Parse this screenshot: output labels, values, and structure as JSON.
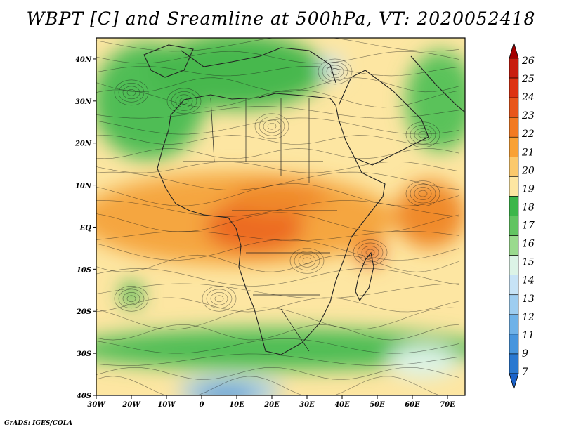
{
  "title": "WBPT [C] and Sreamline at 500hPa, VT: 2020052418",
  "credit": "GrADS: IGES/COLA",
  "map": {
    "variable": "Wet-bulb potential temperature",
    "units": "C",
    "level": "500hPa",
    "valid_time": "2020052418",
    "lon_range": [
      -30,
      75
    ],
    "lat_range": [
      -40,
      45
    ],
    "lon_ticks": [
      {
        "value": -30,
        "label": "30W"
      },
      {
        "value": -20,
        "label": "20W"
      },
      {
        "value": -10,
        "label": "10W"
      },
      {
        "value": 0,
        "label": "0"
      },
      {
        "value": 10,
        "label": "10E"
      },
      {
        "value": 20,
        "label": "20E"
      },
      {
        "value": 30,
        "label": "30E"
      },
      {
        "value": 40,
        "label": "40E"
      },
      {
        "value": 50,
        "label": "50E"
      },
      {
        "value": 60,
        "label": "60E"
      },
      {
        "value": 70,
        "label": "70E"
      }
    ],
    "lat_ticks": [
      {
        "value": 40,
        "label": "40N"
      },
      {
        "value": 30,
        "label": "30N"
      },
      {
        "value": 20,
        "label": "20N"
      },
      {
        "value": 10,
        "label": "10N"
      },
      {
        "value": 0,
        "label": "EQ"
      },
      {
        "value": -10,
        "label": "10S"
      },
      {
        "value": -20,
        "label": "20S"
      },
      {
        "value": -30,
        "label": "30S"
      },
      {
        "value": -40,
        "label": "40S"
      }
    ]
  },
  "colorbar": {
    "labels": [
      "26",
      "25",
      "24",
      "23",
      "22",
      "21",
      "20",
      "19",
      "18",
      "17",
      "16",
      "15",
      "14",
      "13",
      "12",
      "11",
      "9",
      "7"
    ],
    "colors": [
      "#a40000",
      "#c81d0f",
      "#dd3212",
      "#e8561b",
      "#f27a22",
      "#f9a134",
      "#fbc96c",
      "#fde6a2",
      "#3cb64a",
      "#62c462",
      "#9ada8e",
      "#dcf3e6",
      "#c7e3f6",
      "#9ecdf0",
      "#6fb2e8",
      "#4795dd",
      "#2a78d0",
      "#1b62c8"
    ]
  },
  "regions": [
    {
      "name": "warm-belt-equatorial",
      "color": "#f5a640",
      "lon": 10,
      "lat": 2,
      "rx": 45,
      "ry": 11
    },
    {
      "name": "warm-core-central-africa",
      "color": "#ec6a20",
      "lon": 15,
      "lat": 0,
      "rx": 14,
      "ry": 6
    },
    {
      "name": "warm-core-sahel",
      "color": "#f08a2a",
      "lon": 22,
      "lat": 7,
      "rx": 14,
      "ry": 4
    },
    {
      "name": "warm-core-indian-ocean",
      "color": "#f08a2a",
      "lon": 65,
      "lat": 3,
      "rx": 10,
      "ry": 8
    },
    {
      "name": "warm-core-madagascar",
      "color": "#ec6a20",
      "lon": 48,
      "lat": -6,
      "rx": 4,
      "ry": 3
    },
    {
      "name": "green-north-atlantic",
      "color": "#4fbd55",
      "lon": -15,
      "lat": 30,
      "rx": 16,
      "ry": 14
    },
    {
      "name": "green-north-africa",
      "color": "#46b84e",
      "lon": 10,
      "lat": 37,
      "rx": 25,
      "ry": 9
    },
    {
      "name": "green-arabia-east",
      "color": "#5ac25a",
      "lon": 68,
      "lat": 30,
      "rx": 10,
      "ry": 12
    },
    {
      "name": "green-southern-belt",
      "color": "#4fbd55",
      "lon": 22,
      "lat": -29,
      "rx": 60,
      "ry": 5
    },
    {
      "name": "light-blue-south",
      "color": "#9ecdf0",
      "lon": 8,
      "lat": -39,
      "rx": 15,
      "ry": 3
    },
    {
      "name": "blue-south-core",
      "color": "#4795dd",
      "lon": 7,
      "lat": -40,
      "rx": 9,
      "ry": 2
    },
    {
      "name": "pale-blue-southeast",
      "color": "#dcf3e6",
      "lon": 63,
      "lat": -32,
      "rx": 10,
      "ry": 4
    },
    {
      "name": "pale-vortex-north",
      "color": "#c7e3f6",
      "lon": 37,
      "lat": 38,
      "rx": 3,
      "ry": 3
    },
    {
      "name": "green-vortex-southwest",
      "color": "#3cb64a",
      "lon": -20,
      "lat": -16,
      "rx": 3,
      "ry": 3
    }
  ]
}
